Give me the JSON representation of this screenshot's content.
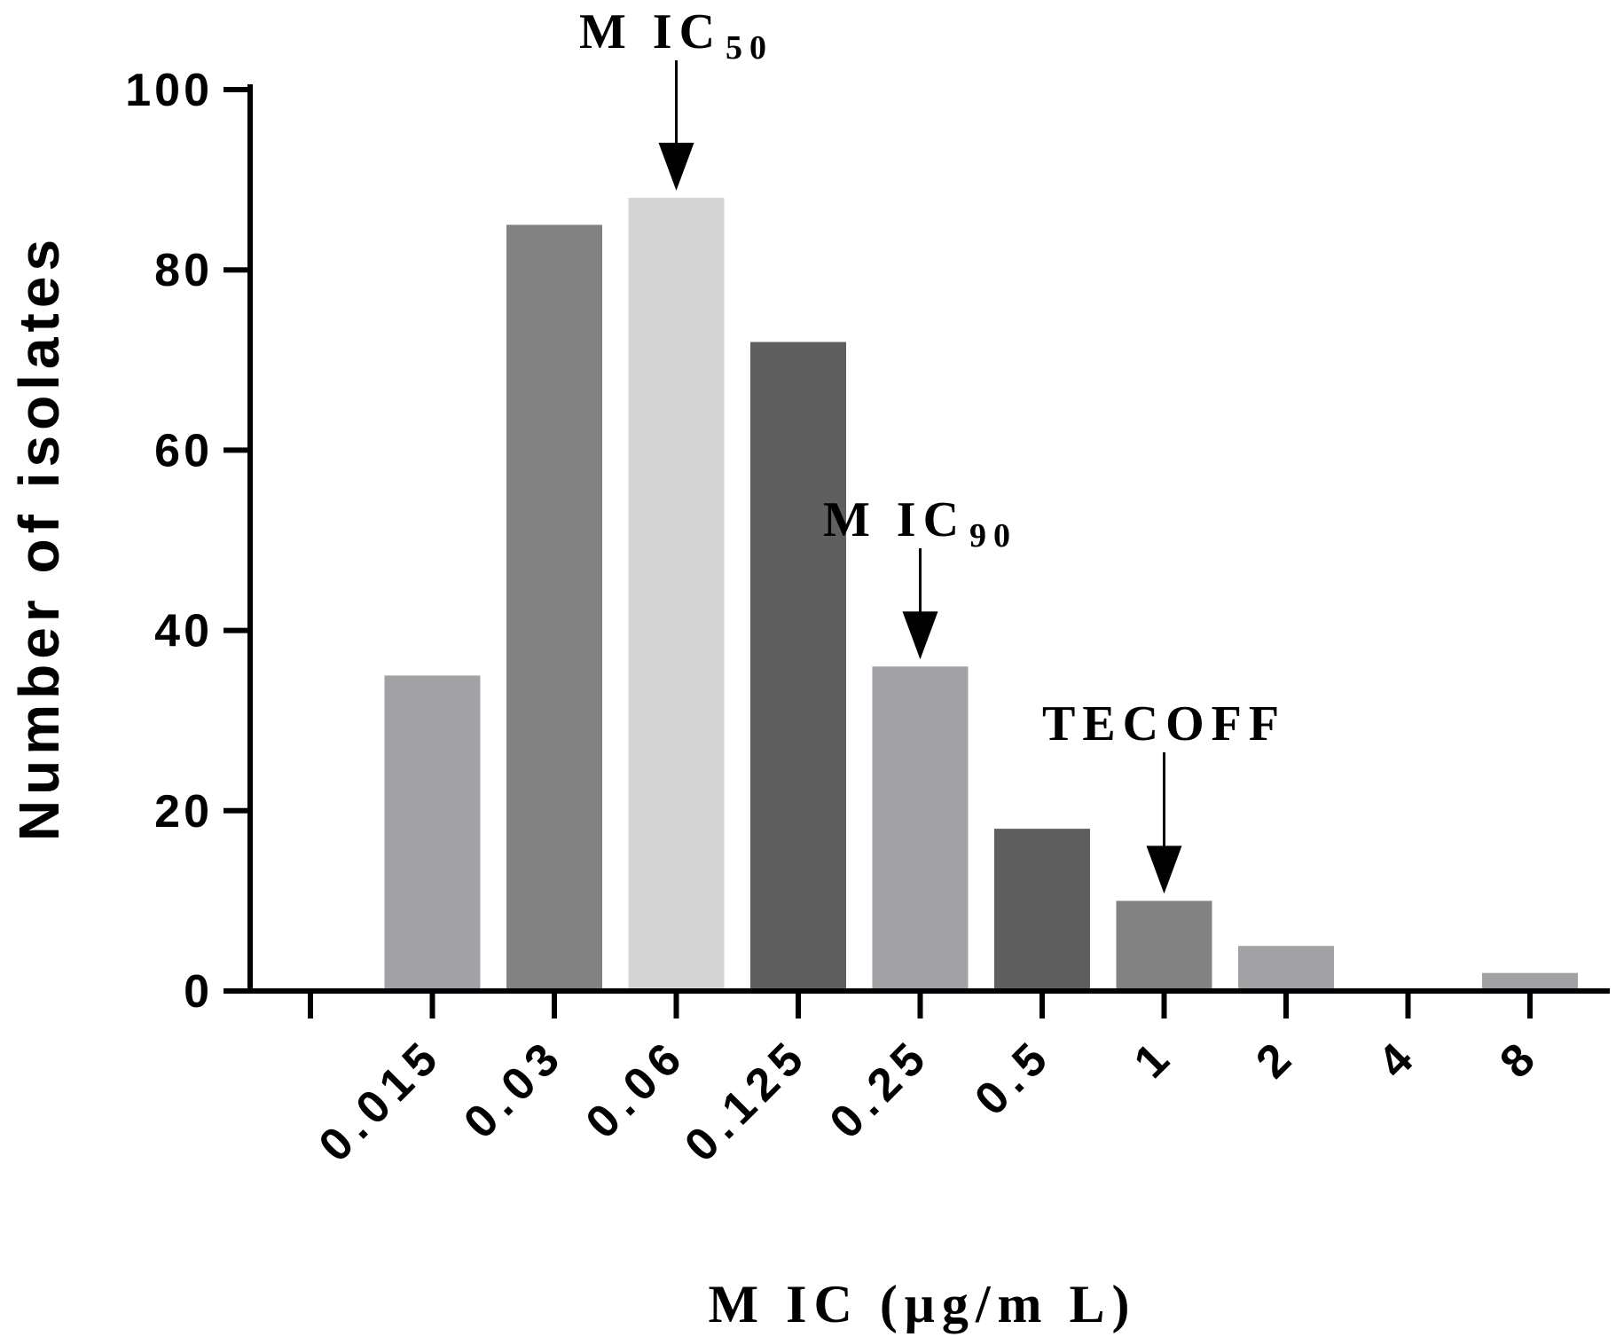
{
  "chart_data": {
    "type": "bar",
    "title": "",
    "xlabel": "M IC (μg/m L)",
    "ylabel": "Number of isolates",
    "ylim": [
      0,
      100
    ],
    "yticks": [
      0,
      20,
      40,
      60,
      80,
      100
    ],
    "categories": [
      "",
      "0.015",
      "0.03",
      "0.06",
      "0.125",
      "0.25",
      "0.5",
      "1",
      "2",
      "4",
      "8"
    ],
    "values": [
      0,
      35,
      85,
      88,
      72,
      36,
      18,
      10,
      5,
      0,
      2
    ],
    "bar_colors": [
      "#ffffff",
      "#a2a2a6",
      "#828282",
      "#d5d5d5",
      "#5f5f5f",
      "#a2a2a6",
      "#5f5f5f",
      "#828282",
      "#a2a2a6",
      "#ffffff",
      "#a2a2a6"
    ],
    "annotations": [
      {
        "name": "mic50",
        "text": "M IC",
        "subscript": "50",
        "category_index": 3
      },
      {
        "name": "mic90",
        "text": "M IC",
        "subscript": "90",
        "category_index": 5
      },
      {
        "name": "tecoff",
        "text": "TECOFF",
        "subscript": "",
        "category_index": 7
      }
    ]
  }
}
